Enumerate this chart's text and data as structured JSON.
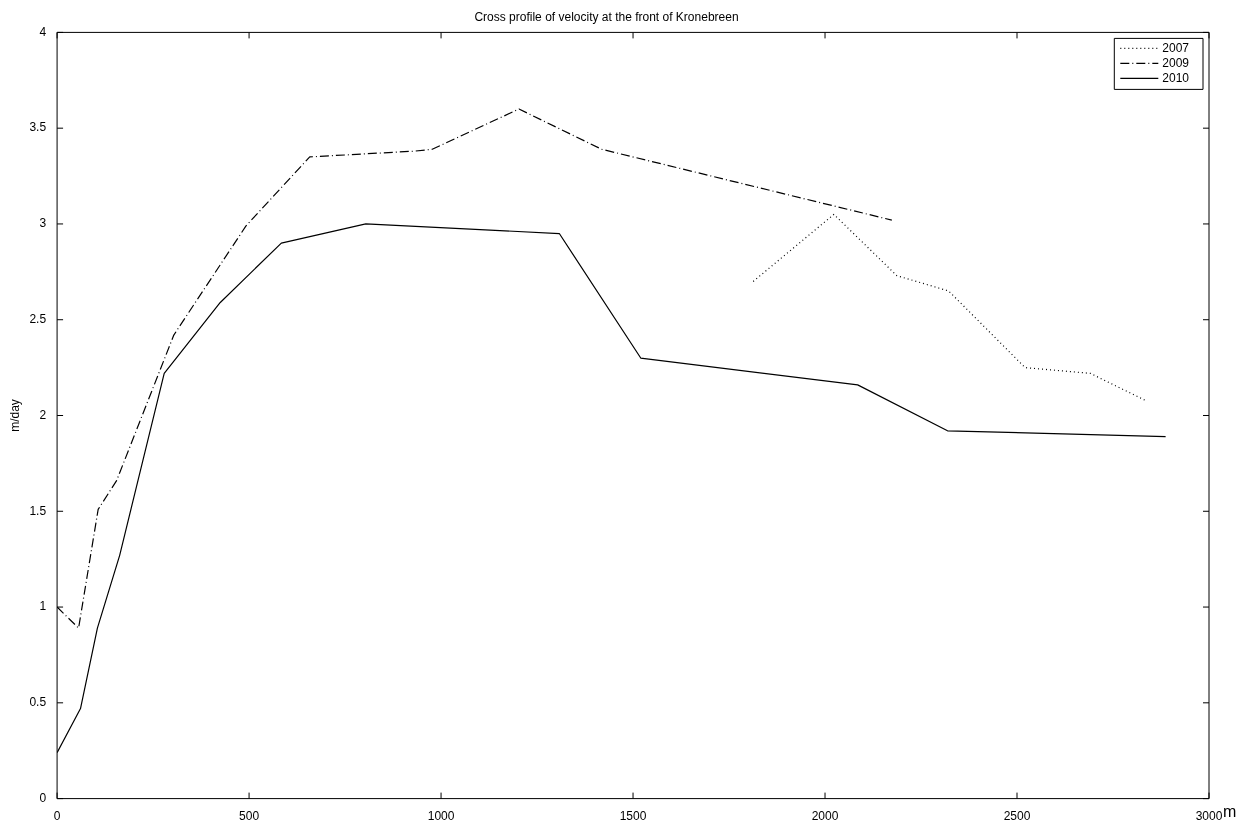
{
  "chart_data": {
    "type": "line",
    "title": "Cross profile of velocity at the front of Kronebreen",
    "xlabel": "m",
    "ylabel": "m/day",
    "xlim": [
      0,
      3000
    ],
    "xticks": [
      0,
      500,
      1000,
      1500,
      2000,
      2500,
      3000
    ],
    "ylim": [
      0,
      4
    ],
    "yticks": [
      0,
      0.5,
      1,
      1.5,
      2,
      2.5,
      3,
      3.5,
      4
    ],
    "grid": false,
    "legend": "top right",
    "marker": "none",
    "series": [
      {
        "name": "2007",
        "color": "#000000",
        "line_style": "dotted",
        "x": [
          1813,
          2023,
          2187,
          2322,
          2521,
          2691,
          2833
        ],
        "values": [
          2.7,
          3.05,
          2.73,
          2.65,
          2.25,
          2.22,
          2.08
        ]
      },
      {
        "name": "2009",
        "color": "#000000",
        "line_style": "dashdot",
        "x": [
          0,
          56,
          107,
          155,
          304,
          492,
          658,
          930,
          977,
          1203,
          1418,
          2174
        ],
        "values": [
          1.0,
          0.89,
          1.51,
          1.66,
          2.42,
          2.99,
          3.35,
          3.38,
          3.39,
          3.6,
          3.39,
          3.02
        ]
      },
      {
        "name": "2010",
        "color": "#000000",
        "line_style": "solid",
        "x": [
          0,
          61,
          105,
          163,
          279,
          425,
          584,
          804,
          1308,
          1520,
          2085,
          2319,
          2887
        ],
        "values": [
          0.24,
          0.47,
          0.89,
          1.27,
          2.22,
          2.59,
          2.9,
          3.0,
          2.95,
          2.3,
          2.16,
          1.92,
          1.89
        ]
      }
    ]
  }
}
